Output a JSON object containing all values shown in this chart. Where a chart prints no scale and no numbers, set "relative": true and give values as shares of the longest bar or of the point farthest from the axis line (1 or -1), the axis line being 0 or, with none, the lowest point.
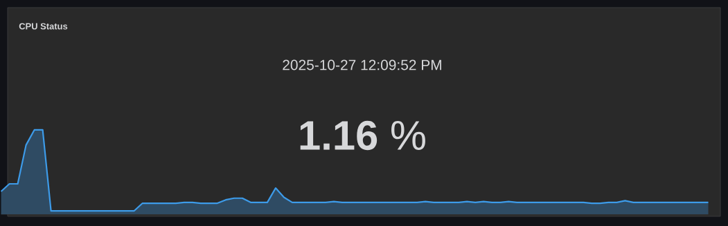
{
  "chart_data": {
    "type": "area",
    "title": "CPU Status",
    "subtitle": "2025-10-27 12:09:52 PM",
    "annotations": [
      "**1.16** %"
    ],
    "relative": true,
    "categories": [
      null,
      null,
      null,
      null,
      null,
      null,
      null,
      null,
      null,
      null,
      null,
      null,
      null,
      null,
      null,
      null,
      null,
      null,
      null,
      null,
      null,
      null,
      null,
      null,
      null,
      null,
      null,
      null,
      null,
      null,
      null,
      null,
      null,
      null,
      null,
      null,
      null,
      null,
      null,
      null,
      null,
      null,
      null,
      null,
      null,
      null,
      null,
      null,
      null,
      null,
      null,
      null,
      null,
      null,
      null,
      null,
      null,
      null,
      null,
      null,
      null,
      null,
      null,
      null,
      null,
      null,
      null,
      null,
      null,
      null,
      null,
      null,
      null,
      null,
      null,
      null,
      null,
      null,
      null,
      null,
      null,
      null,
      null,
      null,
      null,
      null
    ],
    "series": [
      {
        "color": "#3d9be9",
        "values": [
          0.27,
          0.36,
          0.36,
          0.82,
          1,
          1,
          0.04,
          0.04,
          0.04,
          0.04,
          0.04,
          0.04,
          0.04,
          0.04,
          0.04,
          0.04,
          0.04,
          0.13,
          0.13,
          0.13,
          0.13,
          0.13,
          0.14,
          0.14,
          0.13,
          0.13,
          0.13,
          0.17,
          0.19,
          0.19,
          0.14,
          0.14,
          0.14,
          0.31,
          0.2,
          0.14,
          0.14,
          0.14,
          0.14,
          0.14,
          0.15,
          0.14,
          0.14,
          0.14,
          0.14,
          0.14,
          0.14,
          0.14,
          0.14,
          0.14,
          0.14,
          0.15,
          0.14,
          0.14,
          0.14,
          0.14,
          0.15,
          0.14,
          0.15,
          0.14,
          0.14,
          0.15,
          0.14,
          0.14,
          0.14,
          0.14,
          0.14,
          0.14,
          0.14,
          0.14,
          0.14,
          0.13,
          0.13,
          0.14,
          0.14,
          0.16,
          0.14,
          0.14,
          0.14,
          0.14,
          0.14,
          0.14,
          0.14,
          0.14,
          0.14,
          0.14
        ]
      }
    ]
  }
}
